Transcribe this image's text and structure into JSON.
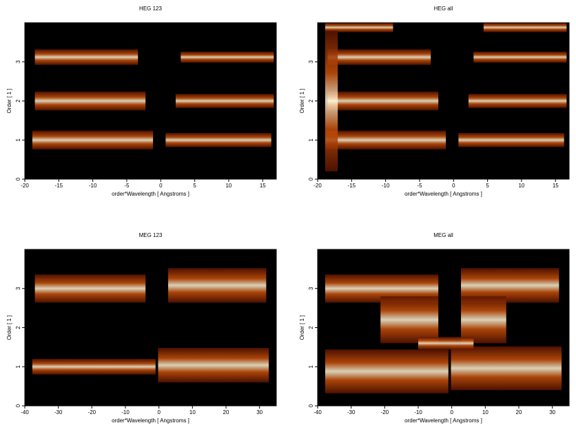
{
  "chart_data": [
    {
      "type": "heatmap",
      "title": "HEG 123",
      "xlabel": "order*Wavelength [ Angstroms ]",
      "ylabel": "Order [ 1 ]",
      "xlim": [
        -20,
        17
      ],
      "xticks": [
        -20,
        -15,
        -10,
        -5,
        0,
        5,
        10,
        15
      ],
      "ylim": [
        0,
        4
      ],
      "yticks": [
        0,
        1,
        2,
        3
      ]
    },
    {
      "type": "heatmap",
      "title": "HEG all",
      "xlabel": "order*Wavelength [ Angstroms ]",
      "ylabel": "Order [ 1 ]",
      "xlim": [
        -20,
        17
      ],
      "xticks": [
        -20,
        -15,
        -10,
        -5,
        0,
        5,
        10,
        15
      ],
      "ylim": [
        0,
        4
      ],
      "yticks": [
        0,
        1,
        2,
        3
      ]
    },
    {
      "type": "heatmap",
      "title": "MEG 123",
      "xlabel": "order*Wavelength [ Angstroms ]",
      "ylabel": "Order [ 1 ]",
      "xlim": [
        -40,
        35
      ],
      "xticks": [
        -40,
        -30,
        -20,
        -10,
        0,
        10,
        20,
        30
      ],
      "ylim": [
        0,
        4
      ],
      "yticks": [
        0,
        1,
        2,
        3
      ]
    },
    {
      "type": "heatmap",
      "title": "MEG all",
      "xlabel": "order*Wavelength [ Angstroms ]",
      "ylabel": "Order [ 1 ]",
      "xlim": [
        -40,
        35
      ],
      "xticks": [
        -40,
        -30,
        -20,
        -10,
        0,
        10,
        20,
        30
      ],
      "ylim": [
        0,
        4
      ],
      "yticks": [
        0,
        1,
        2,
        3
      ]
    }
  ]
}
